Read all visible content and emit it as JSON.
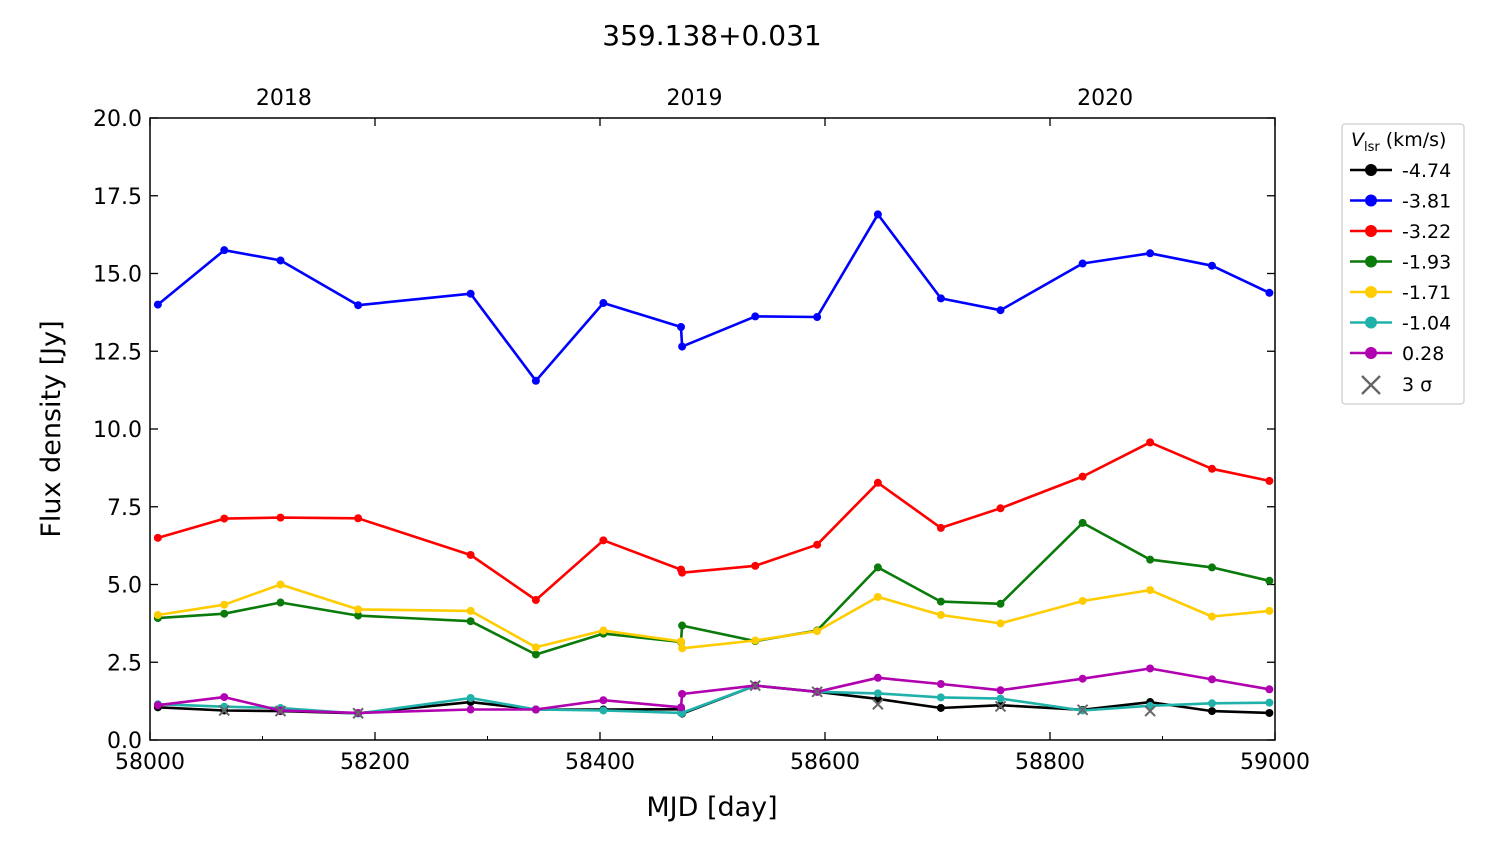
{
  "chart_data": {
    "type": "line",
    "title": "359.138+0.031",
    "xlabel": "MJD [day]",
    "ylabel": "Flux density [Jy]",
    "xlim": [
      58000,
      59000
    ],
    "ylim": [
      0,
      20
    ],
    "x_ticks": [
      "58000",
      "58200",
      "58400",
      "58600",
      "58800",
      "59000"
    ],
    "y_ticks": [
      "0.0",
      "2.5",
      "5.0",
      "7.5",
      "10.0",
      "12.5",
      "15.0",
      "17.5",
      "20.0"
    ],
    "top_axis": {
      "labels": [
        {
          "mjd": 58119,
          "label": "2018"
        },
        {
          "mjd": 58484,
          "label": "2019"
        },
        {
          "mjd": 58849,
          "label": "2020"
        }
      ]
    },
    "legend": {
      "position": "outside-right",
      "title_symbol": "V",
      "title_subscript": "lsr",
      "title_unit": " (km/s)",
      "upper_limit_label": "3 σ"
    },
    "colors": {
      "upper_limit": "#666666",
      "frame": "#000000"
    },
    "series": [
      {
        "name": "-4.74",
        "color": "#000000",
        "points": [
          [
            58007,
            1.05
          ],
          [
            58066,
            0.95
          ],
          [
            58116,
            0.93
          ],
          [
            58185,
            0.86
          ],
          [
            58285,
            1.22
          ],
          [
            58343,
            0.98
          ],
          [
            58403,
            0.98
          ],
          [
            58472,
            0.99
          ],
          [
            58473,
            0.85
          ],
          [
            58538,
            1.75
          ],
          [
            58593,
            1.55
          ],
          [
            58647,
            1.32
          ],
          [
            58703,
            1.03
          ],
          [
            58756,
            1.12
          ],
          [
            58829,
            0.97
          ],
          [
            58889,
            1.22
          ],
          [
            58944,
            0.93
          ],
          [
            58995,
            0.87
          ]
        ]
      },
      {
        "name": "-3.81",
        "color": "#0000ff",
        "points": [
          [
            58007,
            14.0
          ],
          [
            58066,
            15.75
          ],
          [
            58116,
            15.42
          ],
          [
            58185,
            13.98
          ],
          [
            58285,
            14.35
          ],
          [
            58343,
            11.55
          ],
          [
            58403,
            14.05
          ],
          [
            58472,
            13.28
          ],
          [
            58473,
            12.65
          ],
          [
            58538,
            13.62
          ],
          [
            58593,
            13.6
          ],
          [
            58647,
            16.9
          ],
          [
            58703,
            14.2
          ],
          [
            58756,
            13.82
          ],
          [
            58829,
            15.32
          ],
          [
            58889,
            15.65
          ],
          [
            58944,
            15.25
          ],
          [
            58995,
            14.38
          ]
        ]
      },
      {
        "name": "-3.22",
        "color": "#ff0000",
        "points": [
          [
            58007,
            6.5
          ],
          [
            58066,
            7.12
          ],
          [
            58116,
            7.15
          ],
          [
            58185,
            7.13
          ],
          [
            58285,
            5.95
          ],
          [
            58343,
            4.5
          ],
          [
            58403,
            6.42
          ],
          [
            58472,
            5.48
          ],
          [
            58473,
            5.38
          ],
          [
            58538,
            5.6
          ],
          [
            58593,
            6.28
          ],
          [
            58647,
            8.27
          ],
          [
            58703,
            6.82
          ],
          [
            58756,
            7.45
          ],
          [
            58829,
            8.47
          ],
          [
            58889,
            9.57
          ],
          [
            58944,
            8.72
          ],
          [
            58995,
            8.33
          ]
        ]
      },
      {
        "name": "-1.93",
        "color": "#0a7a0a",
        "points": [
          [
            58007,
            3.92
          ],
          [
            58066,
            4.06
          ],
          [
            58116,
            4.42
          ],
          [
            58185,
            4.0
          ],
          [
            58285,
            3.82
          ],
          [
            58343,
            2.75
          ],
          [
            58403,
            3.42
          ],
          [
            58472,
            3.15
          ],
          [
            58473,
            3.68
          ],
          [
            58538,
            3.18
          ],
          [
            58593,
            3.52
          ],
          [
            58647,
            5.55
          ],
          [
            58703,
            4.45
          ],
          [
            58756,
            4.38
          ],
          [
            58829,
            6.98
          ],
          [
            58889,
            5.8
          ],
          [
            58944,
            5.55
          ],
          [
            58995,
            5.12
          ]
        ]
      },
      {
        "name": "-1.71",
        "color": "#ffcc00",
        "points": [
          [
            58007,
            4.02
          ],
          [
            58066,
            4.35
          ],
          [
            58116,
            5.0
          ],
          [
            58185,
            4.2
          ],
          [
            58285,
            4.15
          ],
          [
            58343,
            2.98
          ],
          [
            58403,
            3.52
          ],
          [
            58472,
            3.17
          ],
          [
            58473,
            2.95
          ],
          [
            58538,
            3.2
          ],
          [
            58593,
            3.5
          ],
          [
            58647,
            4.6
          ],
          [
            58703,
            4.02
          ],
          [
            58756,
            3.75
          ],
          [
            58829,
            4.47
          ],
          [
            58889,
            4.82
          ],
          [
            58944,
            3.97
          ],
          [
            58995,
            4.15
          ]
        ]
      },
      {
        "name": "-1.04",
        "color": "#20b2aa",
        "points": [
          [
            58007,
            1.15
          ],
          [
            58066,
            1.07
          ],
          [
            58116,
            1.03
          ],
          [
            58185,
            0.85
          ],
          [
            58285,
            1.35
          ],
          [
            58343,
            0.98
          ],
          [
            58403,
            0.95
          ],
          [
            58472,
            0.87
          ],
          [
            58473,
            0.87
          ],
          [
            58538,
            1.75
          ],
          [
            58593,
            1.55
          ],
          [
            58647,
            1.5
          ],
          [
            58703,
            1.37
          ],
          [
            58756,
            1.33
          ],
          [
            58829,
            0.95
          ],
          [
            58889,
            1.1
          ],
          [
            58944,
            1.18
          ],
          [
            58995,
            1.2
          ]
        ]
      },
      {
        "name": "0.28",
        "color": "#b000b0",
        "points": [
          [
            58007,
            1.12
          ],
          [
            58066,
            1.38
          ],
          [
            58116,
            0.95
          ],
          [
            58185,
            0.87
          ],
          [
            58285,
            0.98
          ],
          [
            58343,
            0.98
          ],
          [
            58403,
            1.28
          ],
          [
            58472,
            1.05
          ],
          [
            58473,
            1.48
          ],
          [
            58538,
            1.75
          ],
          [
            58593,
            1.55
          ],
          [
            58647,
            2.0
          ],
          [
            58703,
            1.8
          ],
          [
            58756,
            1.6
          ],
          [
            58829,
            1.97
          ],
          [
            58889,
            2.3
          ],
          [
            58944,
            1.95
          ],
          [
            58995,
            1.63
          ]
        ]
      }
    ],
    "upper_limits": [
      [
        58066,
        0.95
      ],
      [
        58116,
        0.93
      ],
      [
        58185,
        0.86
      ],
      [
        58538,
        1.75
      ],
      [
        58593,
        1.55
      ],
      [
        58647,
        1.15
      ],
      [
        58756,
        1.08
      ],
      [
        58829,
        0.97
      ],
      [
        58889,
        0.93
      ]
    ]
  }
}
